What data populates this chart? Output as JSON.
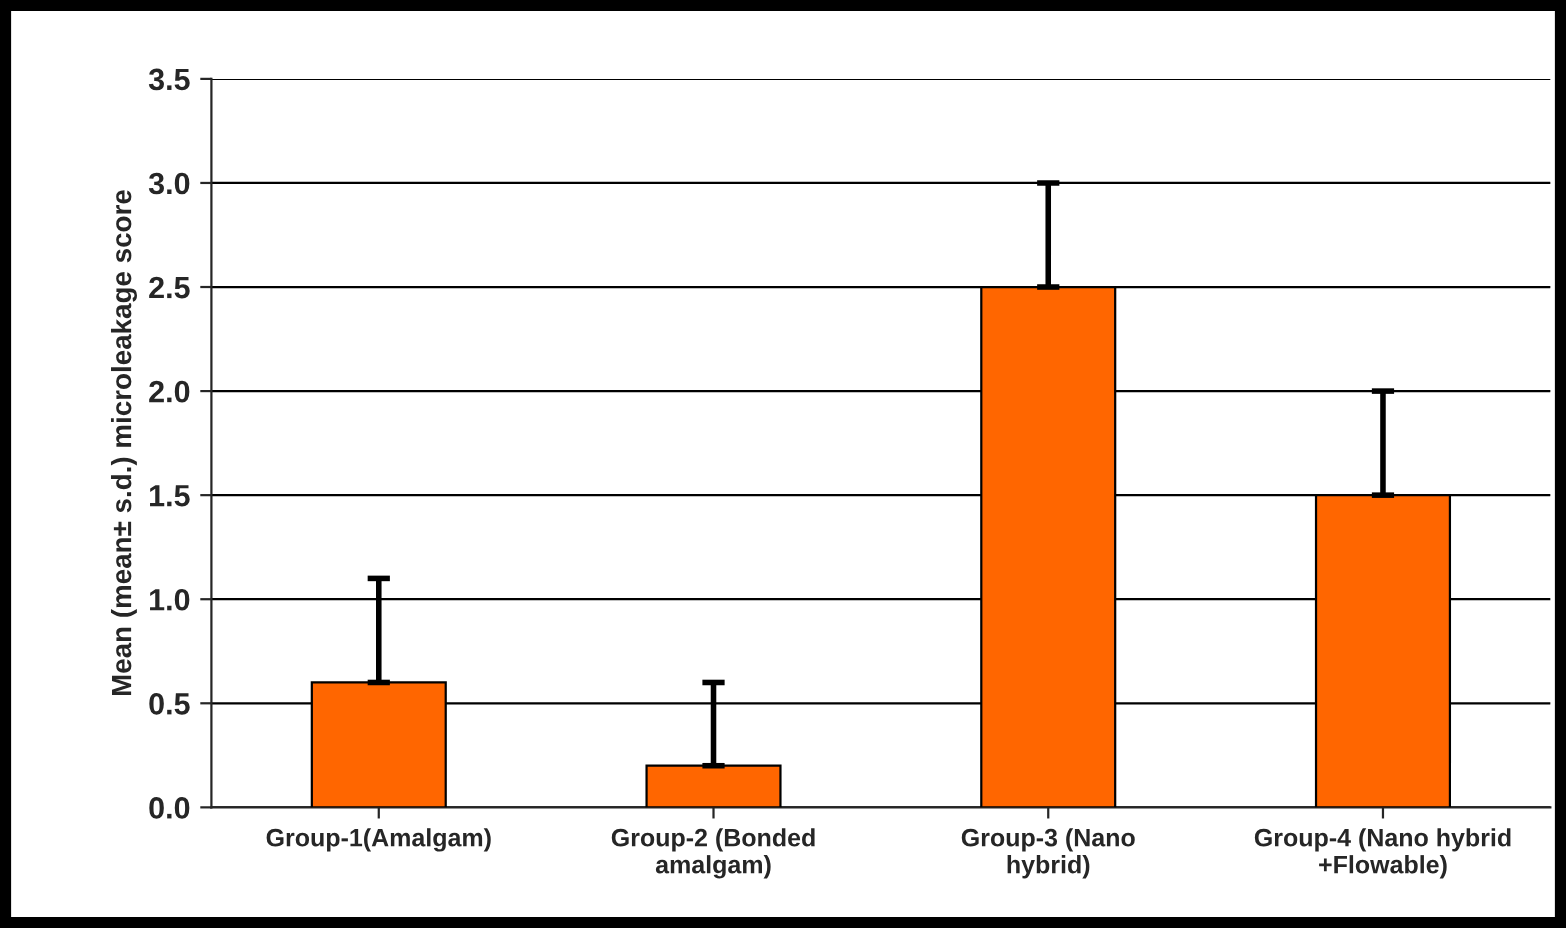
{
  "chart_data": {
    "type": "bar",
    "ylabel": "Mean (mean± s.d.) microleakage score",
    "categories": [
      "Group-1(Amalgam)",
      "Group-2 (Bonded\namalgam)",
      "Group-3 (Nano\nhybrid)",
      "Group-4 (Nano hybrid\n+Flowable)"
    ],
    "values": [
      0.6,
      0.2,
      2.5,
      1.5
    ],
    "errors": [
      [
        0.6,
        1.1
      ],
      [
        0.2,
        0.6
      ],
      [
        2.5,
        3.0
      ],
      [
        1.5,
        2.0
      ]
    ],
    "color": "#ff6600",
    "ylim": [
      0,
      3.5
    ],
    "yticks": [
      {
        "value": 0,
        "label": "0.0"
      },
      0.5,
      {
        "value": 1,
        "label": "1.0"
      },
      1.5,
      {
        "value": 2,
        "label": "2.0"
      },
      2.5,
      {
        "value": 3,
        "label": "3.0"
      },
      3.5
    ],
    "grid": "y",
    "legend": false
  }
}
